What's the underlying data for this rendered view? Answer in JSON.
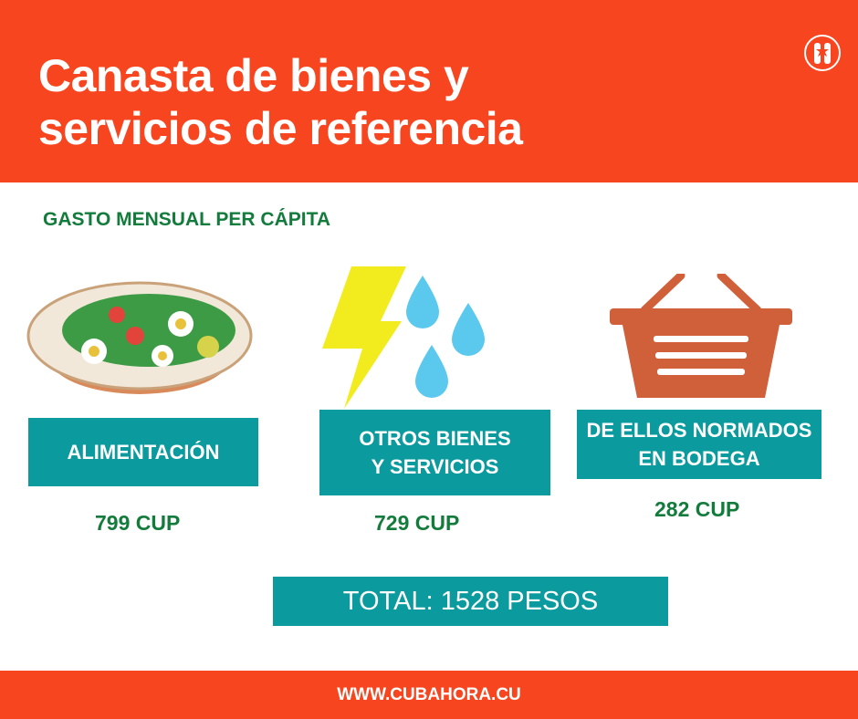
{
  "header": {
    "title_line1": "Canasta de bienes y",
    "title_line2": "servicios de referencia",
    "logo_icon": "cubahora-logo"
  },
  "subtitle": "GASTO MENSUAL PER CÁPITA",
  "items": [
    {
      "label": "ALIMENTACIÓN",
      "value": "799 CUP",
      "icon": "salad-bowl-icon"
    },
    {
      "label_line1": "OTROS BIENES",
      "label_line2": "Y SERVICIOS",
      "value": "729 CUP",
      "icon": "lightning-water-icon"
    },
    {
      "label_line1": "DE ELLOS NORMADOS",
      "label_line2": "EN BODEGA",
      "value": "282 CUP",
      "icon": "basket-icon"
    }
  ],
  "total": "TOTAL: 1528 PESOS",
  "footer": "WWW.CUBAHORA.CU",
  "colors": {
    "brand_orange": "#F7461F",
    "teal": "#0B9A9E",
    "green_text": "#137C3C"
  }
}
